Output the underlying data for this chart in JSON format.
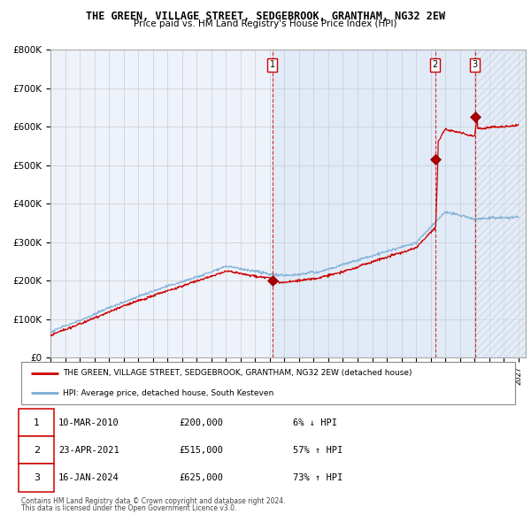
{
  "title": "THE GREEN, VILLAGE STREET, SEDGEBROOK, GRANTHAM, NG32 2EW",
  "subtitle": "Price paid vs. HM Land Registry's House Price Index (HPI)",
  "ylabel_ticks": [
    "£0",
    "£100K",
    "£200K",
    "£300K",
    "£400K",
    "£500K",
    "£600K",
    "£700K",
    "£800K"
  ],
  "ytick_values": [
    0,
    100000,
    200000,
    300000,
    400000,
    500000,
    600000,
    700000,
    800000
  ],
  "ylim": [
    0,
    800000
  ],
  "xlim_start": 1995.0,
  "xlim_end": 2027.5,
  "hpi_color": "#7aadd4",
  "price_color": "#cc0000",
  "bg_color": "#eef2fa",
  "grid_color": "#cccccc",
  "sale_points": [
    {
      "year": 2010.19,
      "price": 200000,
      "label": "1"
    },
    {
      "year": 2021.31,
      "price": 515000,
      "label": "2"
    },
    {
      "year": 2024.04,
      "price": 625000,
      "label": "3"
    }
  ],
  "legend_red_label": "THE GREEN, VILLAGE STREET, SEDGEBROOK, GRANTHAM, NG32 2EW (detached house)",
  "legend_blue_label": "HPI: Average price, detached house, South Kesteven",
  "table_rows": [
    {
      "num": "1",
      "date": "10-MAR-2010",
      "price": "£200,000",
      "hpi": "6% ↓ HPI"
    },
    {
      "num": "2",
      "date": "23-APR-2021",
      "price": "£515,000",
      "hpi": "57% ↑ HPI"
    },
    {
      "num": "3",
      "date": "16-JAN-2024",
      "price": "£625,000",
      "hpi": "73% ↑ HPI"
    }
  ],
  "footnote1": "Contains HM Land Registry data © Crown copyright and database right 2024.",
  "footnote2": "This data is licensed under the Open Government Licence v3.0.",
  "xtick_years": [
    1995,
    1996,
    1997,
    1998,
    1999,
    2000,
    2001,
    2002,
    2003,
    2004,
    2005,
    2006,
    2007,
    2008,
    2009,
    2010,
    2011,
    2012,
    2013,
    2014,
    2015,
    2016,
    2017,
    2018,
    2019,
    2020,
    2021,
    2022,
    2023,
    2024,
    2025,
    2026,
    2027
  ]
}
